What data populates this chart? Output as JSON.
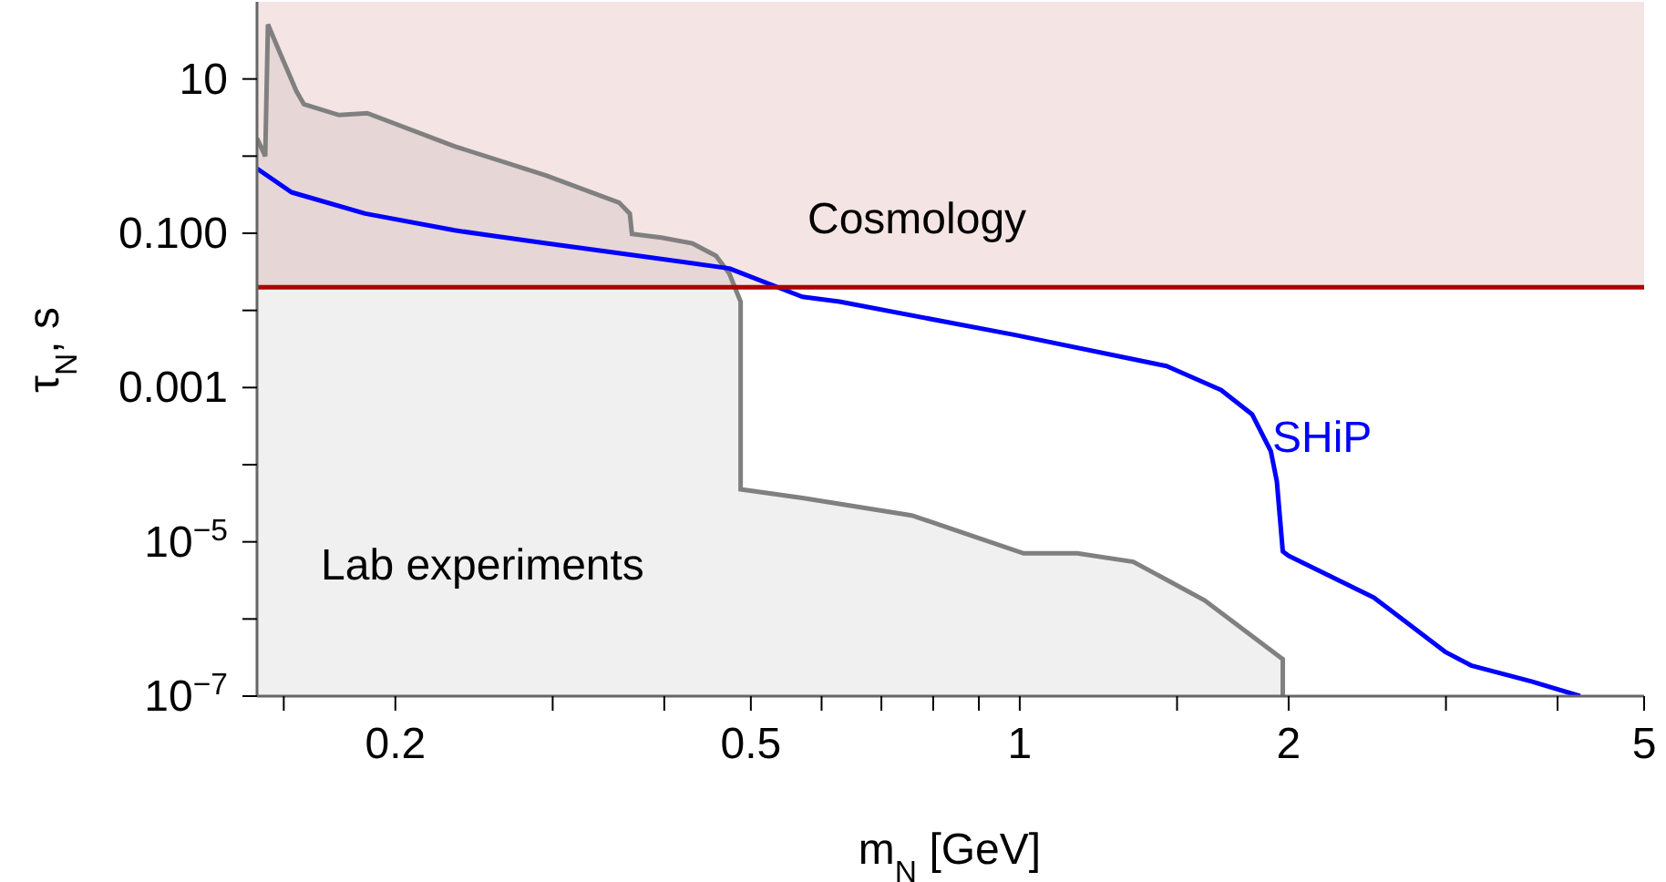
{
  "chart_data": {
    "type": "line",
    "xlabel": "m$_{N}$ [GeV]",
    "ylabel": "τ$_{N}$, s",
    "log": "xy",
    "xlim": [
      0.14,
      5
    ],
    "xticks": [
      {
        "value": 0.15,
        "label": null
      },
      {
        "value": 0.2,
        "label": "0.2"
      },
      {
        "value": 0.3,
        "label": null
      },
      {
        "value": 0.4,
        "label": null
      },
      {
        "value": 0.5,
        "label": "0.5"
      },
      {
        "value": 0.6,
        "label": null
      },
      {
        "value": 0.7,
        "label": null
      },
      {
        "value": 0.8,
        "label": null
      },
      {
        "value": 0.9,
        "label": null
      },
      1,
      {
        "value": 1.5,
        "label": null
      },
      2,
      {
        "value": 3,
        "label": null
      },
      {
        "value": 4,
        "label": null
      },
      5
    ],
    "ylim": [
      1e-07,
      100
    ],
    "yticks": [
      {
        "value": 1e-07,
        "label": "10$^{−7}$"
      },
      {
        "value": 1e-06,
        "label": null
      },
      {
        "value": 1e-05,
        "label": "10$^{−5}$"
      },
      {
        "value": 0.0001,
        "label": null
      },
      {
        "value": 0.001,
        "label": "0.001"
      },
      {
        "value": 0.01,
        "label": null
      },
      {
        "value": 0.1,
        "label": "0.100"
      },
      {
        "value": 1,
        "label": null
      },
      10
    ],
    "bands": [
      {
        "axis": "y",
        "from": 0.02,
        "to": 100,
        "label": "Cosmology",
        "color": "#f5e4e4"
      }
    ],
    "ref_lines": [
      {
        "axis": "y",
        "value": 0.02,
        "color": "#b00000"
      }
    ],
    "series": [
      {
        "name": "Lab experiments",
        "type": "area",
        "color": "#808080",
        "x": [
          0.14,
          0.143,
          0.144,
          0.148,
          0.155,
          0.158,
          0.173,
          0.186,
          0.233,
          0.295,
          0.356,
          0.366,
          0.368,
          0.397,
          0.43,
          0.457,
          0.473,
          0.487,
          0.487,
          0.571,
          0.757,
          0.883,
          1.01,
          1.16,
          1.34,
          1.61,
          1.97,
          1.97
        ],
        "values": [
          1.7,
          1.0,
          51,
          24,
          6.9,
          4.7,
          3.4,
          3.6,
          1.34,
          0.56,
          0.25,
          0.18,
          0.098,
          0.088,
          0.074,
          0.051,
          0.03,
          0.013,
          4.8e-05,
          3.7e-05,
          2.2e-05,
          1.2e-05,
          7.1e-06,
          7.1e-06,
          5.5e-06,
          1.75e-06,
          3e-07,
          1e-07
        ]
      },
      {
        "name": "SHiP",
        "color": "#0000ff",
        "x": [
          0.14,
          0.153,
          0.185,
          0.233,
          0.295,
          0.374,
          0.473,
          0.571,
          0.628,
          0.988,
          1.46,
          1.68,
          1.82,
          1.91,
          1.94,
          1.97,
          2.0,
          2.49,
          3.0,
          3.2,
          3.74,
          4.24
        ],
        "values": [
          0.69,
          0.34,
          0.18,
          0.109,
          0.074,
          0.051,
          0.035,
          0.015,
          0.013,
          0.0048,
          0.0019,
          0.00093,
          0.00045,
          0.00015,
          6.1e-05,
          7.5e-06,
          6.6e-06,
          1.9e-06,
          3.7e-07,
          2.5e-07,
          1.55e-07,
          1e-07
        ]
      }
    ]
  }
}
